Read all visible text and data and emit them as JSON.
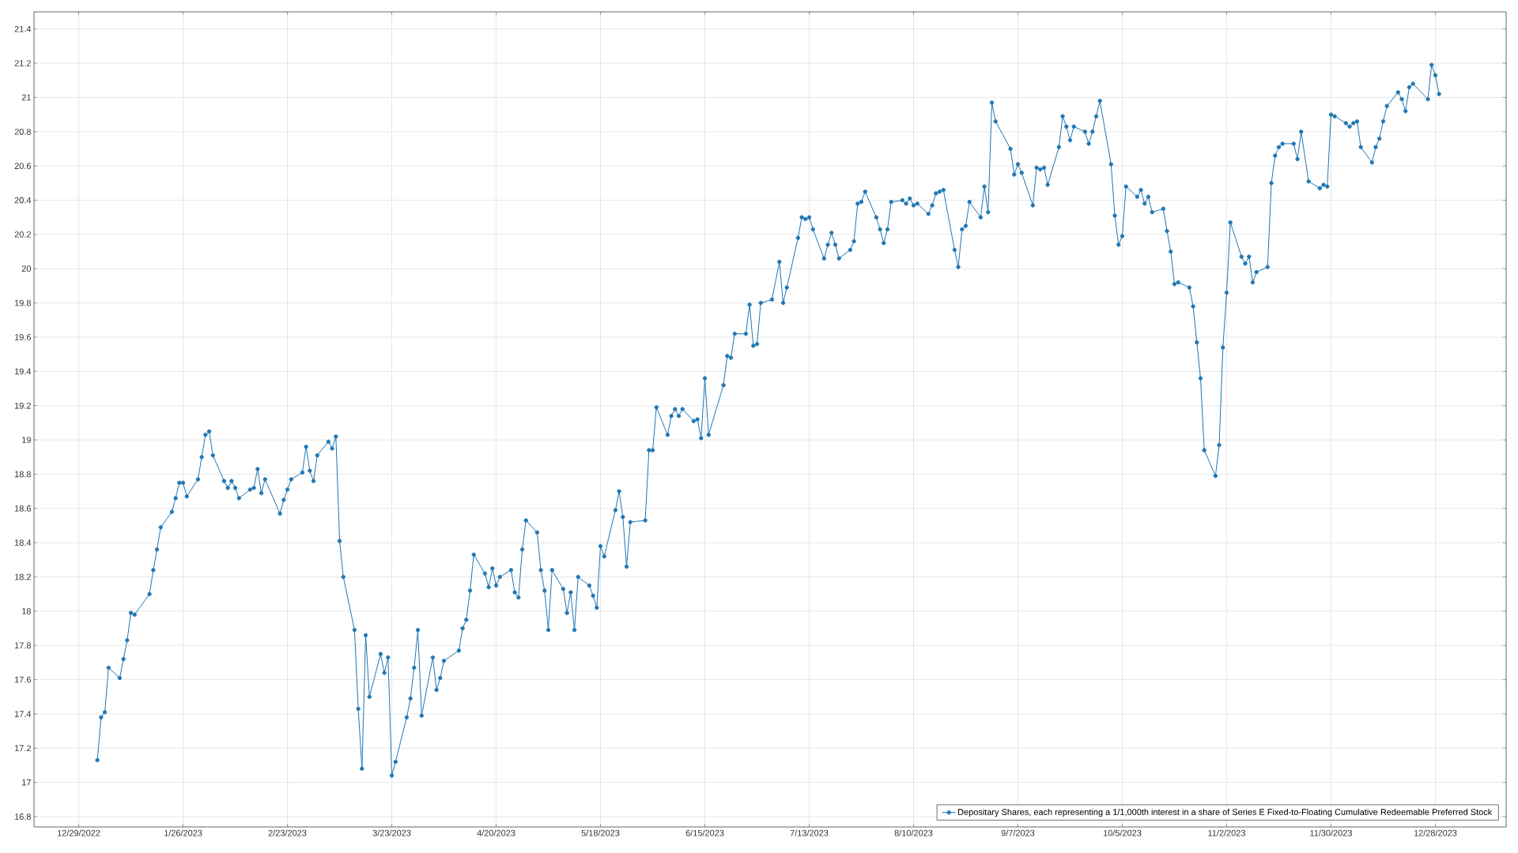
{
  "chart_data": {
    "type": "line",
    "x": [
      "2023-01-03",
      "2023-01-04",
      "2023-01-05",
      "2023-01-06",
      "2023-01-09",
      "2023-01-10",
      "2023-01-11",
      "2023-01-12",
      "2023-01-13",
      "2023-01-17",
      "2023-01-18",
      "2023-01-19",
      "2023-01-20",
      "2023-01-23",
      "2023-01-24",
      "2023-01-25",
      "2023-01-26",
      "2023-01-27",
      "2023-01-30",
      "2023-01-31",
      "2023-02-01",
      "2023-02-02",
      "2023-02-03",
      "2023-02-06",
      "2023-02-07",
      "2023-02-08",
      "2023-02-09",
      "2023-02-10",
      "2023-02-13",
      "2023-02-14",
      "2023-02-15",
      "2023-02-16",
      "2023-02-17",
      "2023-02-21",
      "2023-02-22",
      "2023-02-23",
      "2023-02-24",
      "2023-02-27",
      "2023-02-28",
      "2023-03-01",
      "2023-03-02",
      "2023-03-03",
      "2023-03-06",
      "2023-03-07",
      "2023-03-08",
      "2023-03-09",
      "2023-03-10",
      "2023-03-13",
      "2023-03-14",
      "2023-03-15",
      "2023-03-16",
      "2023-03-17",
      "2023-03-20",
      "2023-03-21",
      "2023-03-22",
      "2023-03-23",
      "2023-03-24",
      "2023-03-27",
      "2023-03-28",
      "2023-03-29",
      "2023-03-30",
      "2023-03-31",
      "2023-04-03",
      "2023-04-04",
      "2023-04-05",
      "2023-04-06",
      "2023-04-10",
      "2023-04-11",
      "2023-04-12",
      "2023-04-13",
      "2023-04-14",
      "2023-04-17",
      "2023-04-18",
      "2023-04-19",
      "2023-04-20",
      "2023-04-21",
      "2023-04-24",
      "2023-04-25",
      "2023-04-26",
      "2023-04-27",
      "2023-04-28",
      "2023-05-01",
      "2023-05-02",
      "2023-05-03",
      "2023-05-04",
      "2023-05-05",
      "2023-05-08",
      "2023-05-09",
      "2023-05-10",
      "2023-05-11",
      "2023-05-12",
      "2023-05-15",
      "2023-05-16",
      "2023-05-17",
      "2023-05-18",
      "2023-05-19",
      "2023-05-22",
      "2023-05-23",
      "2023-05-24",
      "2023-05-25",
      "2023-05-26",
      "2023-05-30",
      "2023-05-31",
      "2023-06-01",
      "2023-06-02",
      "2023-06-05",
      "2023-06-06",
      "2023-06-07",
      "2023-06-08",
      "2023-06-09",
      "2023-06-12",
      "2023-06-13",
      "2023-06-14",
      "2023-06-15",
      "2023-06-16",
      "2023-06-20",
      "2023-06-21",
      "2023-06-22",
      "2023-06-23",
      "2023-06-26",
      "2023-06-27",
      "2023-06-28",
      "2023-06-29",
      "2023-06-30",
      "2023-07-03",
      "2023-07-05",
      "2023-07-06",
      "2023-07-07",
      "2023-07-10",
      "2023-07-11",
      "2023-07-12",
      "2023-07-13",
      "2023-07-14",
      "2023-07-17",
      "2023-07-18",
      "2023-07-19",
      "2023-07-20",
      "2023-07-21",
      "2023-07-24",
      "2023-07-25",
      "2023-07-26",
      "2023-07-27",
      "2023-07-28",
      "2023-07-31",
      "2023-08-01",
      "2023-08-02",
      "2023-08-03",
      "2023-08-04",
      "2023-08-07",
      "2023-08-08",
      "2023-08-09",
      "2023-08-10",
      "2023-08-11",
      "2023-08-14",
      "2023-08-15",
      "2023-08-16",
      "2023-08-17",
      "2023-08-18",
      "2023-08-21",
      "2023-08-22",
      "2023-08-23",
      "2023-08-24",
      "2023-08-25",
      "2023-08-28",
      "2023-08-29",
      "2023-08-30",
      "2023-08-31",
      "2023-09-01",
      "2023-09-05",
      "2023-09-06",
      "2023-09-07",
      "2023-09-08",
      "2023-09-11",
      "2023-09-12",
      "2023-09-13",
      "2023-09-14",
      "2023-09-15",
      "2023-09-18",
      "2023-09-19",
      "2023-09-20",
      "2023-09-21",
      "2023-09-22",
      "2023-09-25",
      "2023-09-26",
      "2023-09-27",
      "2023-09-28",
      "2023-09-29",
      "2023-10-02",
      "2023-10-03",
      "2023-10-04",
      "2023-10-05",
      "2023-10-06",
      "2023-10-09",
      "2023-10-10",
      "2023-10-11",
      "2023-10-12",
      "2023-10-13",
      "2023-10-16",
      "2023-10-17",
      "2023-10-18",
      "2023-10-19",
      "2023-10-20",
      "2023-10-23",
      "2023-10-24",
      "2023-10-25",
      "2023-10-26",
      "2023-10-27",
      "2023-10-30",
      "2023-10-31",
      "2023-11-01",
      "2023-11-02",
      "2023-11-03",
      "2023-11-06",
      "2023-11-07",
      "2023-11-08",
      "2023-11-09",
      "2023-11-10",
      "2023-11-13",
      "2023-11-14",
      "2023-11-15",
      "2023-11-16",
      "2023-11-17",
      "2023-11-20",
      "2023-11-21",
      "2023-11-22",
      "2023-11-24",
      "2023-11-27",
      "2023-11-28",
      "2023-11-29",
      "2023-11-30",
      "2023-12-01",
      "2023-12-04",
      "2023-12-05",
      "2023-12-06",
      "2023-12-07",
      "2023-12-08",
      "2023-12-11",
      "2023-12-12",
      "2023-12-13",
      "2023-12-14",
      "2023-12-15",
      "2023-12-18",
      "2023-12-19",
      "2023-12-20",
      "2023-12-21",
      "2023-12-22",
      "2023-12-26",
      "2023-12-27",
      "2023-12-28",
      "2023-12-29"
    ],
    "series": [
      {
        "name": "Depositary Shares, each representing a 1/1,000th interest in a share of Series E Fixed-to-Floating Cumulative Redeemable Preferred Stock",
        "color": "#1f77b4",
        "values": [
          17.13,
          17.38,
          17.41,
          17.67,
          17.61,
          17.72,
          17.83,
          17.99,
          17.98,
          18.1,
          18.24,
          18.36,
          18.49,
          18.58,
          18.66,
          18.75,
          18.75,
          18.67,
          18.77,
          18.9,
          19.03,
          19.05,
          18.91,
          18.76,
          18.72,
          18.76,
          18.72,
          18.66,
          18.71,
          18.72,
          18.83,
          18.69,
          18.77,
          18.57,
          18.65,
          18.71,
          18.77,
          18.81,
          18.96,
          18.82,
          18.76,
          18.91,
          18.99,
          18.95,
          19.02,
          18.41,
          18.2,
          17.89,
          17.43,
          17.08,
          17.86,
          17.5,
          17.75,
          17.64,
          17.73,
          17.04,
          17.12,
          17.38,
          17.49,
          17.67,
          17.89,
          17.39,
          17.73,
          17.54,
          17.61,
          17.71,
          17.77,
          17.9,
          17.95,
          18.12,
          18.33,
          18.22,
          18.14,
          18.25,
          18.15,
          18.2,
          18.24,
          18.11,
          18.08,
          18.36,
          18.53,
          18.46,
          18.24,
          18.12,
          17.89,
          18.24,
          18.13,
          17.99,
          18.11,
          17.89,
          18.2,
          18.15,
          18.09,
          18.02,
          18.38,
          18.32,
          18.59,
          18.7,
          18.55,
          18.26,
          18.52,
          18.53,
          18.94,
          18.94,
          19.19,
          19.03,
          19.14,
          19.18,
          19.14,
          19.18,
          19.11,
          19.12,
          19.01,
          19.36,
          19.03,
          19.32,
          19.49,
          19.48,
          19.62,
          19.62,
          19.79,
          19.55,
          19.56,
          19.8,
          19.82,
          20.04,
          19.8,
          19.89,
          20.18,
          20.3,
          20.29,
          20.3,
          20.23,
          20.06,
          20.14,
          20.21,
          20.14,
          20.06,
          20.11,
          20.16,
          20.38,
          20.39,
          20.45,
          20.3,
          20.23,
          20.15,
          20.23,
          20.39,
          20.4,
          20.38,
          20.41,
          20.37,
          20.38,
          20.32,
          20.37,
          20.44,
          20.45,
          20.46,
          20.11,
          20.01,
          20.23,
          20.25,
          20.39,
          20.3,
          20.48,
          20.33,
          20.97,
          20.86,
          20.7,
          20.55,
          20.61,
          20.56,
          20.37,
          20.59,
          20.58,
          20.59,
          20.49,
          20.71,
          20.89,
          20.83,
          20.75,
          20.83,
          20.8,
          20.73,
          20.8,
          20.89,
          20.98,
          20.61,
          20.31,
          20.14,
          20.19,
          20.48,
          20.42,
          20.46,
          20.38,
          20.42,
          20.33,
          20.35,
          20.22,
          20.1,
          19.91,
          19.92,
          19.89,
          19.78,
          19.57,
          19.36,
          18.94,
          18.79,
          18.97,
          19.54,
          19.86,
          20.27,
          20.07,
          20.03,
          20.07,
          19.92,
          19.98,
          20.01,
          20.5,
          20.66,
          20.71,
          20.73,
          20.73,
          20.64,
          20.8,
          20.51,
          20.47,
          20.49,
          20.48,
          20.9,
          20.89,
          20.85,
          20.83,
          20.85,
          20.86,
          20.71,
          20.62,
          20.71,
          20.76,
          20.86,
          20.95,
          21.03,
          20.99,
          20.92,
          21.06,
          21.08,
          20.99,
          21.19,
          21.13,
          21.02
        ]
      }
    ],
    "xlim": [
      "2022-12-17",
      "2024-01-16"
    ],
    "xticks": [
      {
        "value": "2022-12-29",
        "label": "12/29/2022"
      },
      {
        "value": "2023-01-26",
        "label": "1/26/2023"
      },
      {
        "value": "2023-02-23",
        "label": "2/23/2023"
      },
      {
        "value": "2023-03-23",
        "label": "3/23/2023"
      },
      {
        "value": "2023-04-20",
        "label": "4/20/2023"
      },
      {
        "value": "2023-05-18",
        "label": "5/18/2023"
      },
      {
        "value": "2023-06-15",
        "label": "6/15/2023"
      },
      {
        "value": "2023-07-13",
        "label": "7/13/2023"
      },
      {
        "value": "2023-08-10",
        "label": "8/10/2023"
      },
      {
        "value": "2023-09-07",
        "label": "9/7/2023"
      },
      {
        "value": "2023-10-05",
        "label": "10/5/2023"
      },
      {
        "value": "2023-11-02",
        "label": "11/2/2023"
      },
      {
        "value": "2023-11-30",
        "label": "11/30/2023"
      },
      {
        "value": "2023-12-28",
        "label": "12/28/2023"
      }
    ],
    "ylim": [
      16.74,
      21.5
    ],
    "yticks": [
      16.8,
      17,
      17.2,
      17.4,
      17.6,
      17.8,
      18,
      18.2,
      18.4,
      18.6,
      18.8,
      19,
      19.2,
      19.4,
      19.6,
      19.8,
      20,
      20.2,
      20.4,
      20.6,
      20.8,
      21,
      21.2,
      21.4
    ],
    "grid": true,
    "legend": "bottom right",
    "marker": "circle",
    "line_style": "solid"
  }
}
